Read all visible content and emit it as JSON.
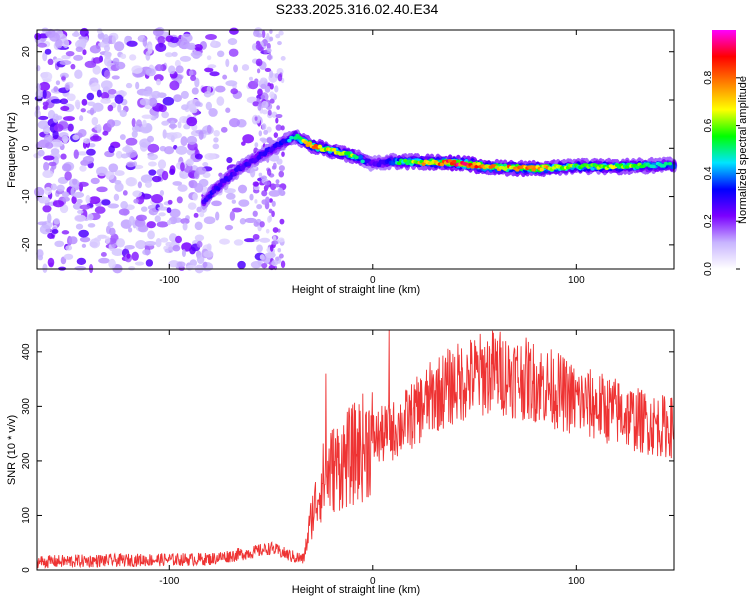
{
  "title": "S233.2025.316.02.40.E34",
  "chart_data": [
    {
      "type": "heatmap",
      "title": "S233.2025.316.02.40.E34",
      "xlabel": "Height of straight line (km)",
      "ylabel": "Frequency (Hz)",
      "xlim": [
        -165,
        148
      ],
      "ylim": [
        -25,
        24.5
      ],
      "xticks": [
        -100,
        0,
        100
      ],
      "yticks": [
        -20,
        -10,
        0,
        10,
        20
      ],
      "colorbar": {
        "label": "Normalized spectral amplitude",
        "range": [
          0,
          1
        ],
        "ticks": [
          0.0,
          0.2,
          0.4,
          0.6,
          0.8
        ],
        "colors": [
          "#ffffff",
          "#c8b4ff",
          "#7b00ff",
          "#0000ff",
          "#00e5ff",
          "#00ff00",
          "#ffff00",
          "#ff8000",
          "#ff0000",
          "#ff00ff"
        ]
      },
      "ridge": {
        "x": [
          -83,
          -75,
          -65,
          -55,
          -45,
          -38,
          -30,
          -20,
          -10,
          0,
          10,
          20,
          40,
          60,
          80,
          100,
          120,
          148
        ],
        "y": [
          -11,
          -7.5,
          -4,
          -1.5,
          1,
          2.5,
          0.5,
          -0.5,
          -1.5,
          -3.2,
          -2.7,
          -2.8,
          -3.0,
          -4.0,
          -4.2,
          -3.8,
          -3.8,
          -3.5
        ],
        "amplitude": [
          0.3,
          0.35,
          0.32,
          0.33,
          0.38,
          0.45,
          0.75,
          0.62,
          0.58,
          0.25,
          0.45,
          0.6,
          0.9,
          0.7,
          0.8,
          0.55,
          0.6,
          0.45
        ]
      },
      "noise_region_x": [
        -165,
        -48
      ]
    },
    {
      "type": "line",
      "xlabel": "Height of straight line (km)",
      "ylabel": "SNR (10 * v/v)",
      "xlim": [
        -165,
        148
      ],
      "ylim": [
        0,
        440
      ],
      "xticks": [
        -100,
        0,
        100
      ],
      "yticks": [
        0,
        100,
        200,
        300,
        400
      ],
      "color": "#ee3333",
      "series": [
        {
          "name": "SNR",
          "x": [
            -165,
            -120,
            -80,
            -60,
            -50,
            -40,
            -34,
            -30,
            -25,
            -20,
            -10,
            0,
            10,
            20,
            30,
            40,
            50,
            60,
            70,
            80,
            90,
            100,
            110,
            120,
            130,
            140,
            148
          ],
          "y": [
            15,
            18,
            20,
            32,
            40,
            25,
            20,
            100,
            160,
            185,
            210,
            240,
            255,
            285,
            320,
            340,
            355,
            365,
            355,
            345,
            330,
            310,
            300,
            290,
            275,
            265,
            262
          ]
        }
      ],
      "peaks": [
        {
          "x": 8,
          "y": 440
        },
        {
          "x": -23,
          "y": 360
        }
      ]
    }
  ]
}
